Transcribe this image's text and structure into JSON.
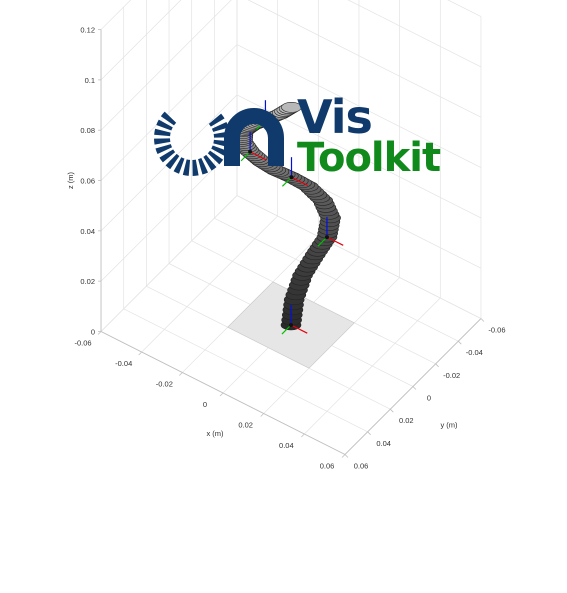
{
  "logo": {
    "line1": "Vis",
    "line2": "Toolkit",
    "mark_color": "#0f3a6b",
    "line1_color": "#0f3a6b",
    "line2_color": "#118a1c"
  },
  "chart_data": {
    "type": "3d-line",
    "title": "",
    "xlabel": "x (m)",
    "ylabel": "y (m)",
    "zlabel": "z (m)",
    "xlim": [
      -0.06,
      0.06
    ],
    "ylim": [
      -0.06,
      0.06
    ],
    "zlim": [
      0,
      0.12
    ],
    "x_ticks": [
      "-0.06",
      "-0.04",
      "-0.02",
      "0",
      "0.02",
      "0.04",
      "0.06"
    ],
    "y_ticks": [
      "-0.06",
      "-0.04",
      "-0.02",
      "0",
      "0.02",
      "0.04",
      "0.06"
    ],
    "z_ticks": [
      "0",
      "0.02",
      "0.04",
      "0.06",
      "0.08",
      "0.1",
      "0.12"
    ],
    "grid": true,
    "base_plate": {
      "half_width": 0.02,
      "z": 0,
      "color": "#e6e6e6"
    },
    "robot_backbone": {
      "name": "",
      "points": [
        [
          0.0,
          0.0,
          0.0
        ],
        [
          0.001,
          -0.001,
          0.01
        ],
        [
          0.004,
          -0.003,
          0.02
        ],
        [
          0.008,
          -0.007,
          0.028
        ],
        [
          0.011,
          -0.012,
          0.034
        ],
        [
          0.01,
          -0.017,
          0.039
        ],
        [
          0.005,
          -0.019,
          0.043
        ],
        [
          -0.001,
          -0.017,
          0.047
        ],
        [
          -0.007,
          -0.013,
          0.05
        ],
        [
          -0.012,
          -0.008,
          0.053
        ],
        [
          -0.016,
          -0.003,
          0.057
        ],
        [
          -0.019,
          0.002,
          0.062
        ],
        [
          -0.02,
          0.007,
          0.068
        ],
        [
          -0.018,
          0.01,
          0.074
        ],
        [
          -0.013,
          0.011,
          0.079
        ],
        [
          -0.007,
          0.01,
          0.083
        ],
        [
          -0.001,
          0.008,
          0.087
        ],
        [
          0.003,
          0.005,
          0.09
        ]
      ],
      "segment_colors": [
        "#2a2a2a",
        "#6e6e6e",
        "#b8b8b8"
      ]
    },
    "frames": [
      {
        "origin": [
          0.0,
          0.0,
          0.0
        ]
      },
      {
        "origin": [
          0.011,
          -0.012,
          0.034
        ]
      },
      {
        "origin": [
          -0.007,
          -0.013,
          0.05
        ]
      },
      {
        "origin": [
          -0.019,
          0.002,
          0.062
        ]
      },
      {
        "origin": [
          -0.007,
          0.01,
          0.083
        ]
      }
    ],
    "frame_colors": {
      "x": "#e8000b",
      "y": "#00c000",
      "z": "#0010e0"
    }
  }
}
